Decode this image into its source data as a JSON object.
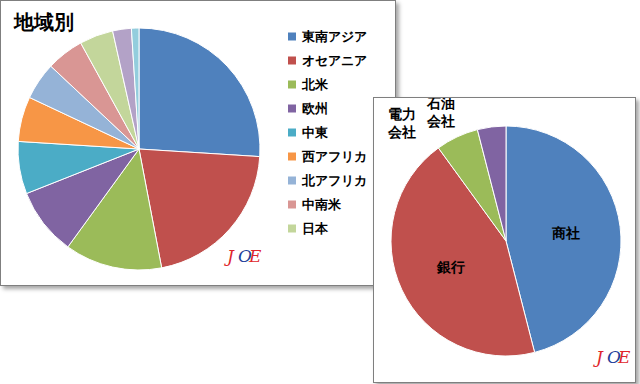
{
  "chart_data": [
    {
      "type": "pie",
      "title": "地域別",
      "categories": [
        "東南アジア",
        "オセアニア",
        "北米",
        "欧州",
        "中東",
        "西アフリカ",
        "北アフリカ",
        "中南米",
        "日本",
        null,
        null
      ],
      "values": [
        26,
        21,
        13,
        9,
        7,
        6,
        5,
        5,
        4.5,
        2.5,
        1
      ],
      "colors": [
        "#4f81bd",
        "#c0504d",
        "#9bbb59",
        "#8064a2",
        "#4bacc6",
        "#f79646",
        "#95b3d7",
        "#d99694",
        "#c3d69b",
        "#b3a2c7",
        "#93cddd"
      ],
      "legend": "right",
      "annotation": "JOE"
    },
    {
      "type": "pie",
      "categories": [
        "商社",
        "銀行",
        "電力\n会社",
        "石油\n会社"
      ],
      "values": [
        46,
        44,
        6,
        4
      ],
      "colors": [
        "#4f81bd",
        "#c0504d",
        "#9bbb59",
        "#8064a2"
      ],
      "annotation": "JOE"
    }
  ]
}
